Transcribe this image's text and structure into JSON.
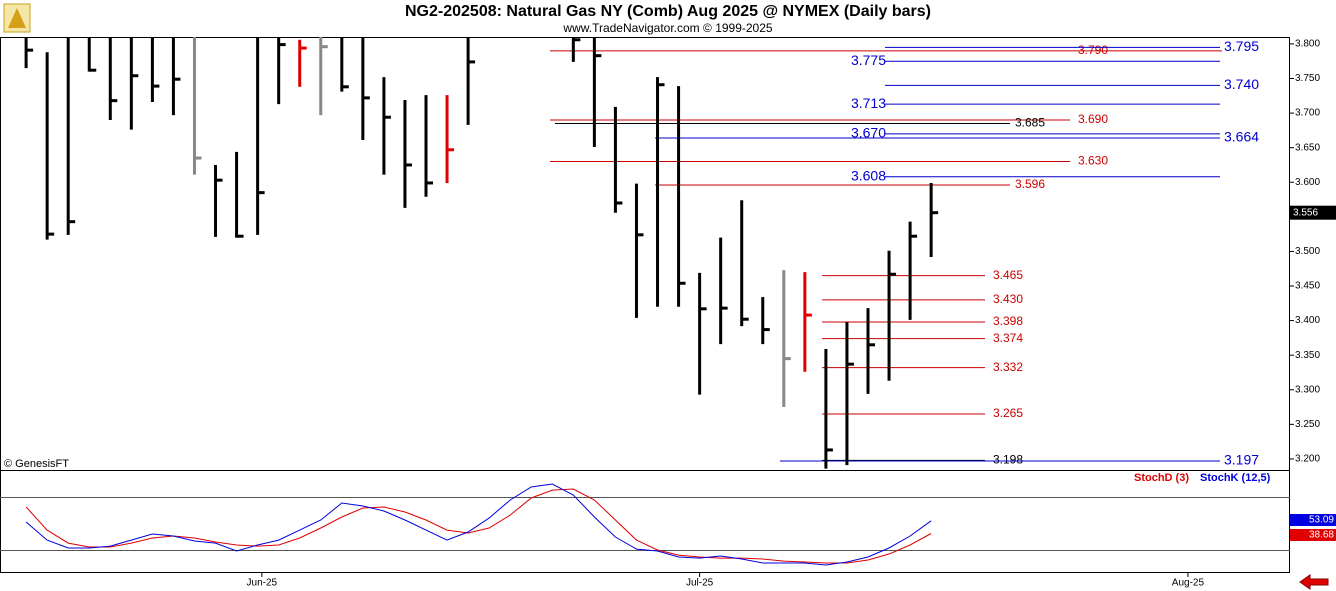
{
  "chart_data": [
    {
      "type": "ohlc",
      "title": "NG2-202508:  Natural Gas NY (Comb) Aug 2025 @ NYMEX  (Daily bars)",
      "subtitle": "www.TradeNavigator.com © 1999-2025",
      "watermark": "© GenesisFT",
      "x": [
        0,
        1,
        2,
        3,
        4,
        5,
        6,
        7,
        8,
        9,
        10,
        11,
        12,
        13,
        14,
        15,
        16,
        17,
        18,
        19,
        20,
        21,
        26,
        27,
        28,
        29,
        30,
        31,
        32,
        33,
        34,
        35,
        36,
        37,
        38,
        39,
        40,
        41,
        42,
        43
      ],
      "high": [
        3.82,
        3.788,
        3.82,
        3.82,
        3.82,
        3.82,
        3.82,
        3.82,
        3.82,
        3.625,
        3.644,
        3.82,
        3.82,
        3.806,
        3.82,
        3.82,
        3.82,
        3.752,
        3.719,
        3.726,
        3.726,
        3.82,
        3.82,
        3.82,
        3.709,
        3.598,
        3.752,
        3.739,
        3.469,
        3.52,
        3.574,
        3.434,
        3.473,
        3.47,
        3.359,
        3.398,
        3.418,
        3.501,
        3.543,
        3.599
      ],
      "low": [
        3.765,
        3.517,
        3.524,
        3.76,
        3.69,
        3.676,
        3.716,
        3.697,
        3.611,
        3.521,
        3.52,
        3.524,
        3.713,
        3.738,
        3.697,
        3.731,
        3.661,
        3.611,
        3.563,
        3.579,
        3.599,
        3.683,
        3.774,
        3.651,
        3.556,
        3.404,
        3.42,
        3.42,
        3.293,
        3.366,
        3.392,
        3.366,
        3.275,
        3.326,
        3.186,
        3.191,
        3.294,
        3.313,
        3.401,
        3.492
      ],
      "close": [
        3.791,
        3.525,
        3.543,
        3.762,
        3.718,
        3.754,
        3.739,
        3.749,
        3.635,
        3.603,
        3.522,
        3.585,
        3.799,
        3.794,
        3.796,
        3.738,
        3.722,
        3.694,
        3.625,
        3.599,
        3.647,
        3.774,
        3.806,
        3.783,
        3.57,
        3.524,
        3.741,
        3.454,
        3.417,
        3.418,
        3.402,
        3.387,
        3.345,
        3.408,
        3.213,
        3.337,
        3.365,
        3.467,
        3.522,
        3.556
      ],
      "colors": [
        "#000",
        "#000",
        "#000",
        "#000",
        "#000",
        "#000",
        "#000",
        "#000",
        "#888",
        "#000",
        "#000",
        "#000",
        "#000",
        "#e00000",
        "#888",
        "#000",
        "#000",
        "#000",
        "#000",
        "#000",
        "#e00000",
        "#000",
        "#000",
        "#000",
        "#000",
        "#000",
        "#000",
        "#000",
        "#000",
        "#000",
        "#000",
        "#000",
        "#888",
        "#e00000",
        "#000",
        "#000",
        "#000",
        "#000",
        "#000",
        "#000"
      ],
      "xlim": [
        -1.24,
        60.05
      ],
      "ylim": [
        3.184,
        3.81
      ],
      "yticks": [
        {
          "value": 3.2,
          "label": "3.200"
        },
        {
          "value": 3.25,
          "label": "3.250"
        },
        {
          "value": 3.3,
          "label": "3.300"
        },
        {
          "value": 3.35,
          "label": "3.350"
        },
        {
          "value": 3.4,
          "label": "3.400"
        },
        {
          "value": 3.45,
          "label": "3.450"
        },
        {
          "value": 3.5,
          "label": "3.500"
        },
        {
          "value": 3.55,
          "label": "3.550"
        },
        {
          "value": 3.6,
          "label": "3.600"
        },
        {
          "value": 3.65,
          "label": "3.650"
        },
        {
          "value": 3.7,
          "label": "3.700"
        },
        {
          "value": 3.75,
          "label": "3.750"
        },
        {
          "value": 3.8,
          "label": "3.800"
        }
      ],
      "levels": [
        {
          "value": 3.79,
          "label": "3.790",
          "color": "#cc0000"
        },
        {
          "value": 3.795,
          "color": "#0000cc"
        },
        {
          "value": 3.775,
          "color": "#0000cc"
        },
        {
          "value": 3.74,
          "label": "3.740",
          "color": "#0000cc"
        },
        {
          "value": 3.713,
          "color": "#0000cc"
        },
        {
          "value": 3.69,
          "label": "3.690",
          "color": "#cc0000"
        },
        {
          "value": 3.685,
          "color": "#000000"
        },
        {
          "value": 3.67,
          "label": "3.670",
          "color": "#0000cc"
        },
        {
          "value": 3.664,
          "color": "#0000cc"
        },
        {
          "value": 3.63,
          "label": "3.630",
          "color": "#cc0000"
        },
        {
          "value": 3.608,
          "color": "#0000cc"
        },
        {
          "value": 3.596,
          "color": "#cc0000"
        },
        {
          "value": 3.465,
          "color": "#cc0000"
        },
        {
          "value": 3.43,
          "label": "3.430",
          "color": "#cc0000"
        },
        {
          "value": 3.398,
          "color": "#cc0000"
        },
        {
          "value": 3.374,
          "color": "#cc0000"
        },
        {
          "value": 3.332,
          "color": "#cc0000"
        },
        {
          "value": 3.265,
          "color": "#cc0000"
        },
        {
          "value": 3.198,
          "color": "#000000"
        },
        {
          "value": 3.197,
          "color": "#0000cc"
        }
      ]
    },
    {
      "type": "line",
      "xlim": [
        -1.24,
        60.05
      ],
      "ylim": [
        -6,
        110.6
      ],
      "xticks": [
        {
          "value": 11.2,
          "label": "Jun-25"
        },
        {
          "value": 32,
          "label": "Jul-25"
        },
        {
          "value": 55.2,
          "label": "Aug-25"
        }
      ],
      "x": [
        0,
        1,
        2,
        3,
        4,
        5,
        6,
        7,
        8,
        9,
        10,
        11,
        12,
        13,
        14,
        15,
        16,
        17,
        18,
        19,
        20,
        21,
        22,
        23,
        24,
        25,
        26,
        27,
        28,
        29,
        30,
        31,
        32,
        33,
        34,
        35,
        36,
        37,
        38,
        39,
        40,
        41,
        42,
        43
      ],
      "series": [
        {
          "name": "StochD (3)",
          "color": "#e00000",
          "values": [
            68.7,
            42.6,
            27.9,
            23.4,
            23.4,
            27.9,
            33.6,
            35.9,
            33.6,
            29.1,
            25.7,
            24.5,
            25.7,
            33.6,
            44.9,
            57.4,
            67.6,
            68.7,
            63.0,
            54.0,
            42.6,
            39.3,
            44.9,
            59.6,
            78.9,
            87.9,
            89.1,
            76.6,
            54.0,
            31.3,
            20.0,
            14.3,
            12.1,
            10.9,
            10.9,
            9.8,
            7.5,
            6.4,
            5.3,
            5.3,
            8.7,
            15.5,
            25.7,
            38.68
          ]
        },
        {
          "name": "StochK (12,5)",
          "color": "#0000e0",
          "values": [
            51.7,
            31.3,
            22.3,
            22.3,
            24.5,
            31.3,
            38.1,
            35.9,
            30.2,
            27.9,
            18.9,
            25.7,
            31.3,
            42.6,
            54.0,
            73.2,
            69.8,
            64.2,
            54.0,
            42.6,
            31.3,
            40.4,
            56.2,
            76.6,
            91.3,
            94.7,
            82.3,
            57.4,
            34.7,
            21.1,
            18.9,
            12.1,
            10.9,
            13.2,
            9.8,
            5.3,
            5.3,
            5.3,
            3.0,
            6.4,
            12.1,
            22.3,
            35.9,
            53.09
          ]
        }
      ]
    }
  ]
}
